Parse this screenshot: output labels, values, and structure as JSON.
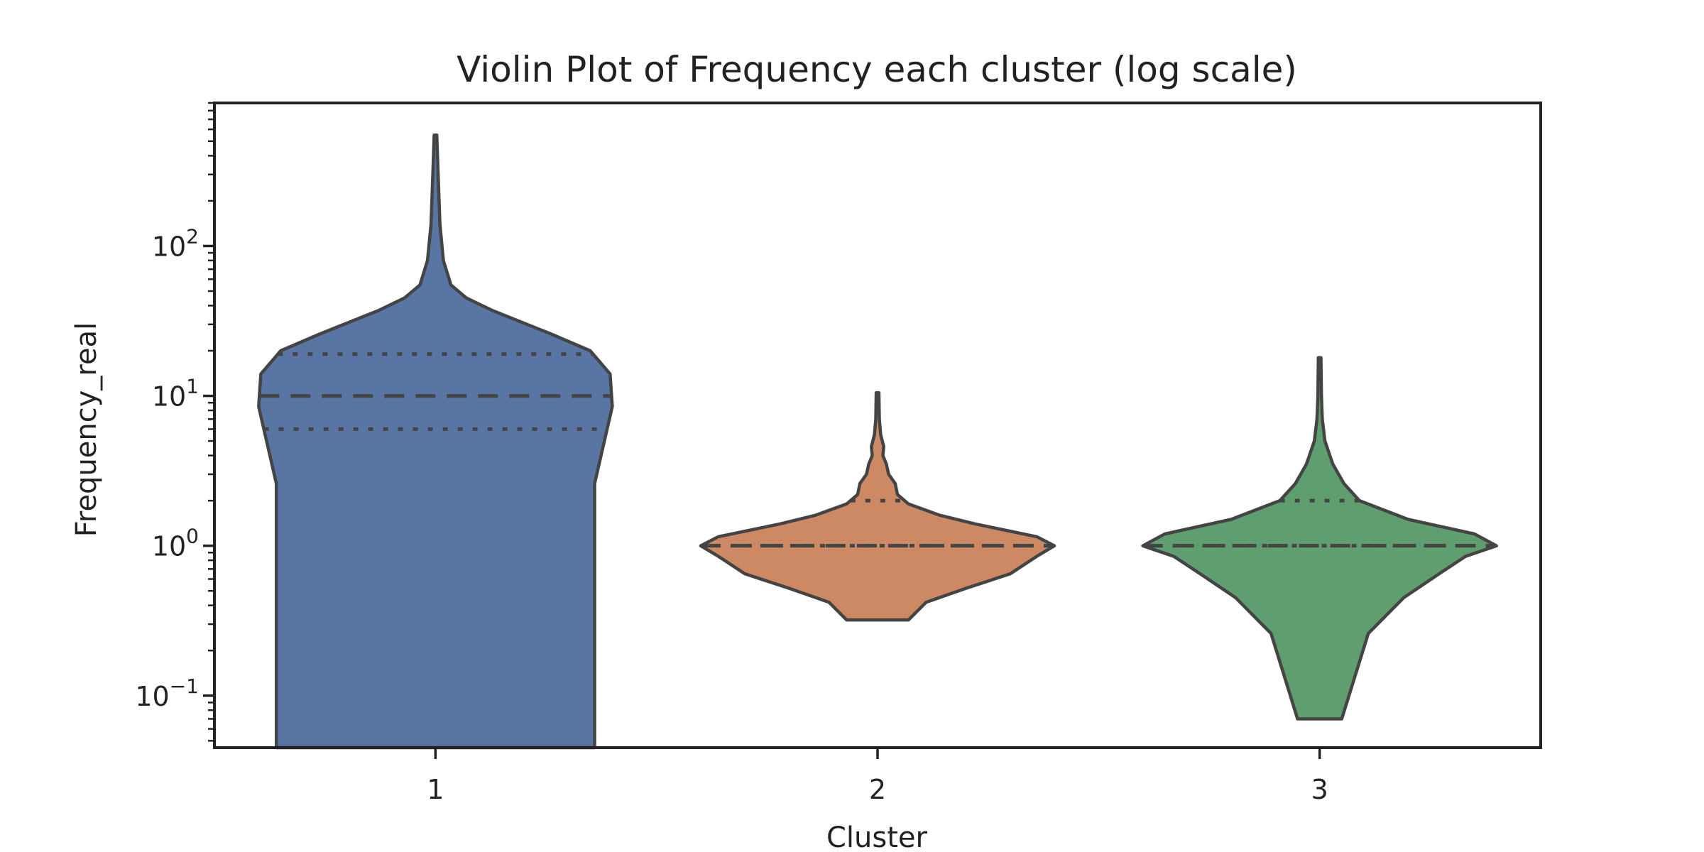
{
  "chart_data": {
    "type": "violin",
    "title": "Violin Plot of Frequency each cluster (log scale)",
    "xlabel": "Cluster",
    "ylabel": "Frequency_real",
    "yscale": "log",
    "ylim": [
      0.045,
      900
    ],
    "y_ticks": [
      {
        "value": 0.1,
        "base": "10",
        "exp": "−1"
      },
      {
        "value": 1,
        "base": "10",
        "exp": "0"
      },
      {
        "value": 10,
        "base": "10",
        "exp": "1"
      },
      {
        "value": 100,
        "base": "10",
        "exp": "2"
      }
    ],
    "grid": false,
    "inner": "quartile",
    "categories": [
      "1",
      "2",
      "3"
    ],
    "series": [
      {
        "category": "1",
        "color": "#5875a4",
        "min": 0.045,
        "max": 550,
        "q1": 6,
        "median": 10,
        "q3": 19,
        "profile": [
          [
            0.045,
            0.36
          ],
          [
            2.6,
            0.36
          ],
          [
            8.5,
            0.4
          ],
          [
            14,
            0.395
          ],
          [
            20,
            0.35
          ],
          [
            26,
            0.26
          ],
          [
            37,
            0.13
          ],
          [
            45,
            0.07
          ],
          [
            55,
            0.035
          ],
          [
            80,
            0.018
          ],
          [
            140,
            0.01
          ],
          [
            300,
            0.006
          ],
          [
            550,
            0.003
          ]
        ]
      },
      {
        "category": "2",
        "color": "#cc8963",
        "min": 0.32,
        "max": 10.5,
        "q1": 1,
        "median": 1,
        "q3": 2,
        "profile": [
          [
            0.32,
            0.07
          ],
          [
            0.42,
            0.11
          ],
          [
            0.52,
            0.2
          ],
          [
            0.65,
            0.3
          ],
          [
            0.85,
            0.36
          ],
          [
            1.0,
            0.4
          ],
          [
            1.15,
            0.36
          ],
          [
            1.4,
            0.22
          ],
          [
            1.6,
            0.14
          ],
          [
            1.9,
            0.07
          ],
          [
            2.2,
            0.045
          ],
          [
            2.6,
            0.04
          ],
          [
            3.0,
            0.025
          ],
          [
            3.5,
            0.02
          ],
          [
            4.0,
            0.012
          ],
          [
            4.6,
            0.014
          ],
          [
            5.5,
            0.007
          ],
          [
            7.0,
            0.004
          ],
          [
            10.5,
            0.003
          ]
        ]
      },
      {
        "category": "3",
        "color": "#5f9e6e",
        "min": 0.07,
        "max": 18,
        "q1": 1,
        "median": 1,
        "q3": 2,
        "profile": [
          [
            0.07,
            0.05
          ],
          [
            0.26,
            0.11
          ],
          [
            0.45,
            0.19
          ],
          [
            0.65,
            0.27
          ],
          [
            0.85,
            0.33
          ],
          [
            1.0,
            0.4
          ],
          [
            1.2,
            0.35
          ],
          [
            1.5,
            0.2
          ],
          [
            2.0,
            0.09
          ],
          [
            2.6,
            0.055
          ],
          [
            3.5,
            0.03
          ],
          [
            5.0,
            0.012
          ],
          [
            7.0,
            0.006
          ],
          [
            10,
            0.004
          ],
          [
            18,
            0.003
          ]
        ]
      }
    ]
  }
}
